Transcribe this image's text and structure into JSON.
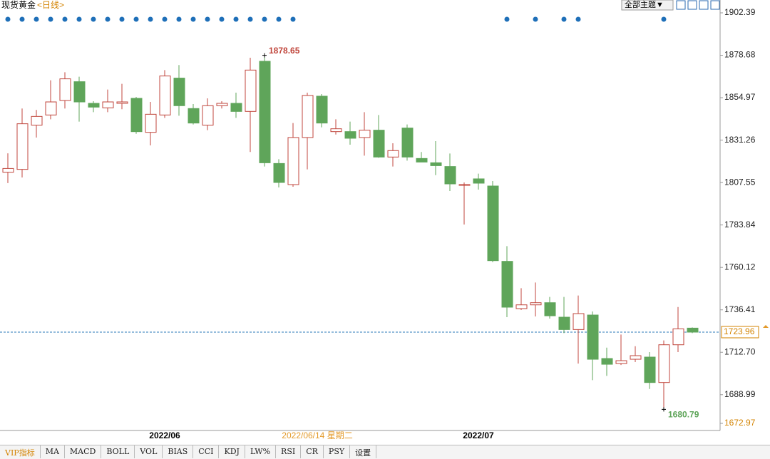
{
  "header": {
    "title": "现货黄金",
    "period": "<日线>",
    "theme_button": "全部主题▼"
  },
  "tabs": [
    "VIP指标",
    "MA",
    "MACD",
    "BOLL",
    "VOL",
    "BIAS",
    "CCI",
    "KDJ",
    "LW%",
    "RSI",
    "CR",
    "PSY",
    "设置"
  ],
  "chart_data": {
    "type": "candlestick",
    "up_color": "#c0463c",
    "down_color": "#5fa55a",
    "open": [
      1813.3,
      1814.9,
      1839.6,
      1845.3,
      1853.4,
      1863.9,
      1851.8,
      1849.3,
      1851.8,
      1854.6,
      1835.6,
      1845.3,
      1865.9,
      1848.9,
      1839.6,
      1850.5,
      1851.8,
      1847.3,
      1875.3,
      1818.2,
      1806.4,
      1832.7,
      1855.8,
      1836.0,
      1836.0,
      1832.7,
      1836.8,
      1821.8,
      1838.0,
      1821.0,
      1818.6,
      1816.5,
      1806.0,
      1809.6,
      1805.6,
      1763.5,
      1737.1,
      1739.2,
      1740.4,
      1732.3,
      1725.4,
      1733.5,
      1709.2,
      1706.4,
      1708.8,
      1710.0,
      1695.8,
      1716.9,
      1726.2
    ],
    "high": [
      1823.9,
      1848.9,
      1848.1,
      1864.7,
      1869.2,
      1866.7,
      1853.0,
      1859.5,
      1862.7,
      1855.4,
      1852.6,
      1870.4,
      1873.2,
      1851.4,
      1854.6,
      1853.0,
      1857.8,
      1877.3,
      1878.65,
      1820.6,
      1840.8,
      1857.8,
      1857.0,
      1842.9,
      1841.6,
      1846.9,
      1845.3,
      1829.5,
      1840.0,
      1824.6,
      1830.7,
      1823.8,
      1807.6,
      1812.5,
      1808.4,
      1772.0,
      1748.5,
      1751.7,
      1743.6,
      1743.6,
      1744.4,
      1735.5,
      1715.3,
      1722.6,
      1716.1,
      1712.8,
      1719.3,
      1738.0,
      1726.6
    ],
    "low": [
      1807.25,
      1810.4,
      1832.7,
      1842.9,
      1848.9,
      1841.6,
      1846.9,
      1846.9,
      1848.5,
      1834.8,
      1828.3,
      1843.7,
      1844.9,
      1840.0,
      1836.8,
      1848.9,
      1843.7,
      1824.6,
      1816.5,
      1804.8,
      1805.2,
      1814.9,
      1838.4,
      1834.4,
      1828.7,
      1822.6,
      1821.4,
      1816.5,
      1819.8,
      1819.0,
      1811.7,
      1802.8,
      1784.1,
      1803.6,
      1763.1,
      1732.3,
      1736.3,
      1732.7,
      1731.5,
      1723.4,
      1706.4,
      1697.1,
      1699.5,
      1705.6,
      1707.2,
      1692.2,
      1680.79,
      1712.8,
      1723.4
    ],
    "close": [
      1815.4,
      1840.4,
      1844.5,
      1852.6,
      1865.5,
      1852.6,
      1849.7,
      1852.6,
      1852.6,
      1836.0,
      1845.7,
      1867.1,
      1850.5,
      1840.8,
      1850.5,
      1851.8,
      1847.3,
      1870.4,
      1818.6,
      1807.6,
      1832.7,
      1856.2,
      1840.8,
      1837.6,
      1832.3,
      1836.8,
      1821.8,
      1825.4,
      1821.8,
      1819.0,
      1817.0,
      1806.8,
      1806.4,
      1807.2,
      1763.9,
      1737.9,
      1739.2,
      1740.4,
      1733.1,
      1725.4,
      1734.3,
      1708.8,
      1706.0,
      1708.0,
      1710.8,
      1695.8,
      1716.9,
      1725.8,
      1723.96
    ],
    "x_labels": [
      {
        "value": 11,
        "label": "2022/06"
      },
      {
        "value": 33,
        "label": "2022/07"
      }
    ],
    "crosshair_label": "2022/06/14 星期二",
    "signal_markers": [
      0,
      1,
      2,
      3,
      4,
      5,
      6,
      7,
      8,
      9,
      10,
      11,
      12,
      13,
      14,
      15,
      16,
      17,
      18,
      19,
      20,
      35,
      37,
      39,
      40,
      46
    ],
    "current_price": 1723.96,
    "ylim": [
      1672.97,
      1902.39
    ],
    "yticks": [
      1902.39,
      1878.68,
      1854.97,
      1831.26,
      1807.55,
      1783.84,
      1760.12,
      1736.41,
      {
        "value": 1712.7,
        "label": "1712.70"
      },
      1688.99,
      1672.97
    ]
  }
}
